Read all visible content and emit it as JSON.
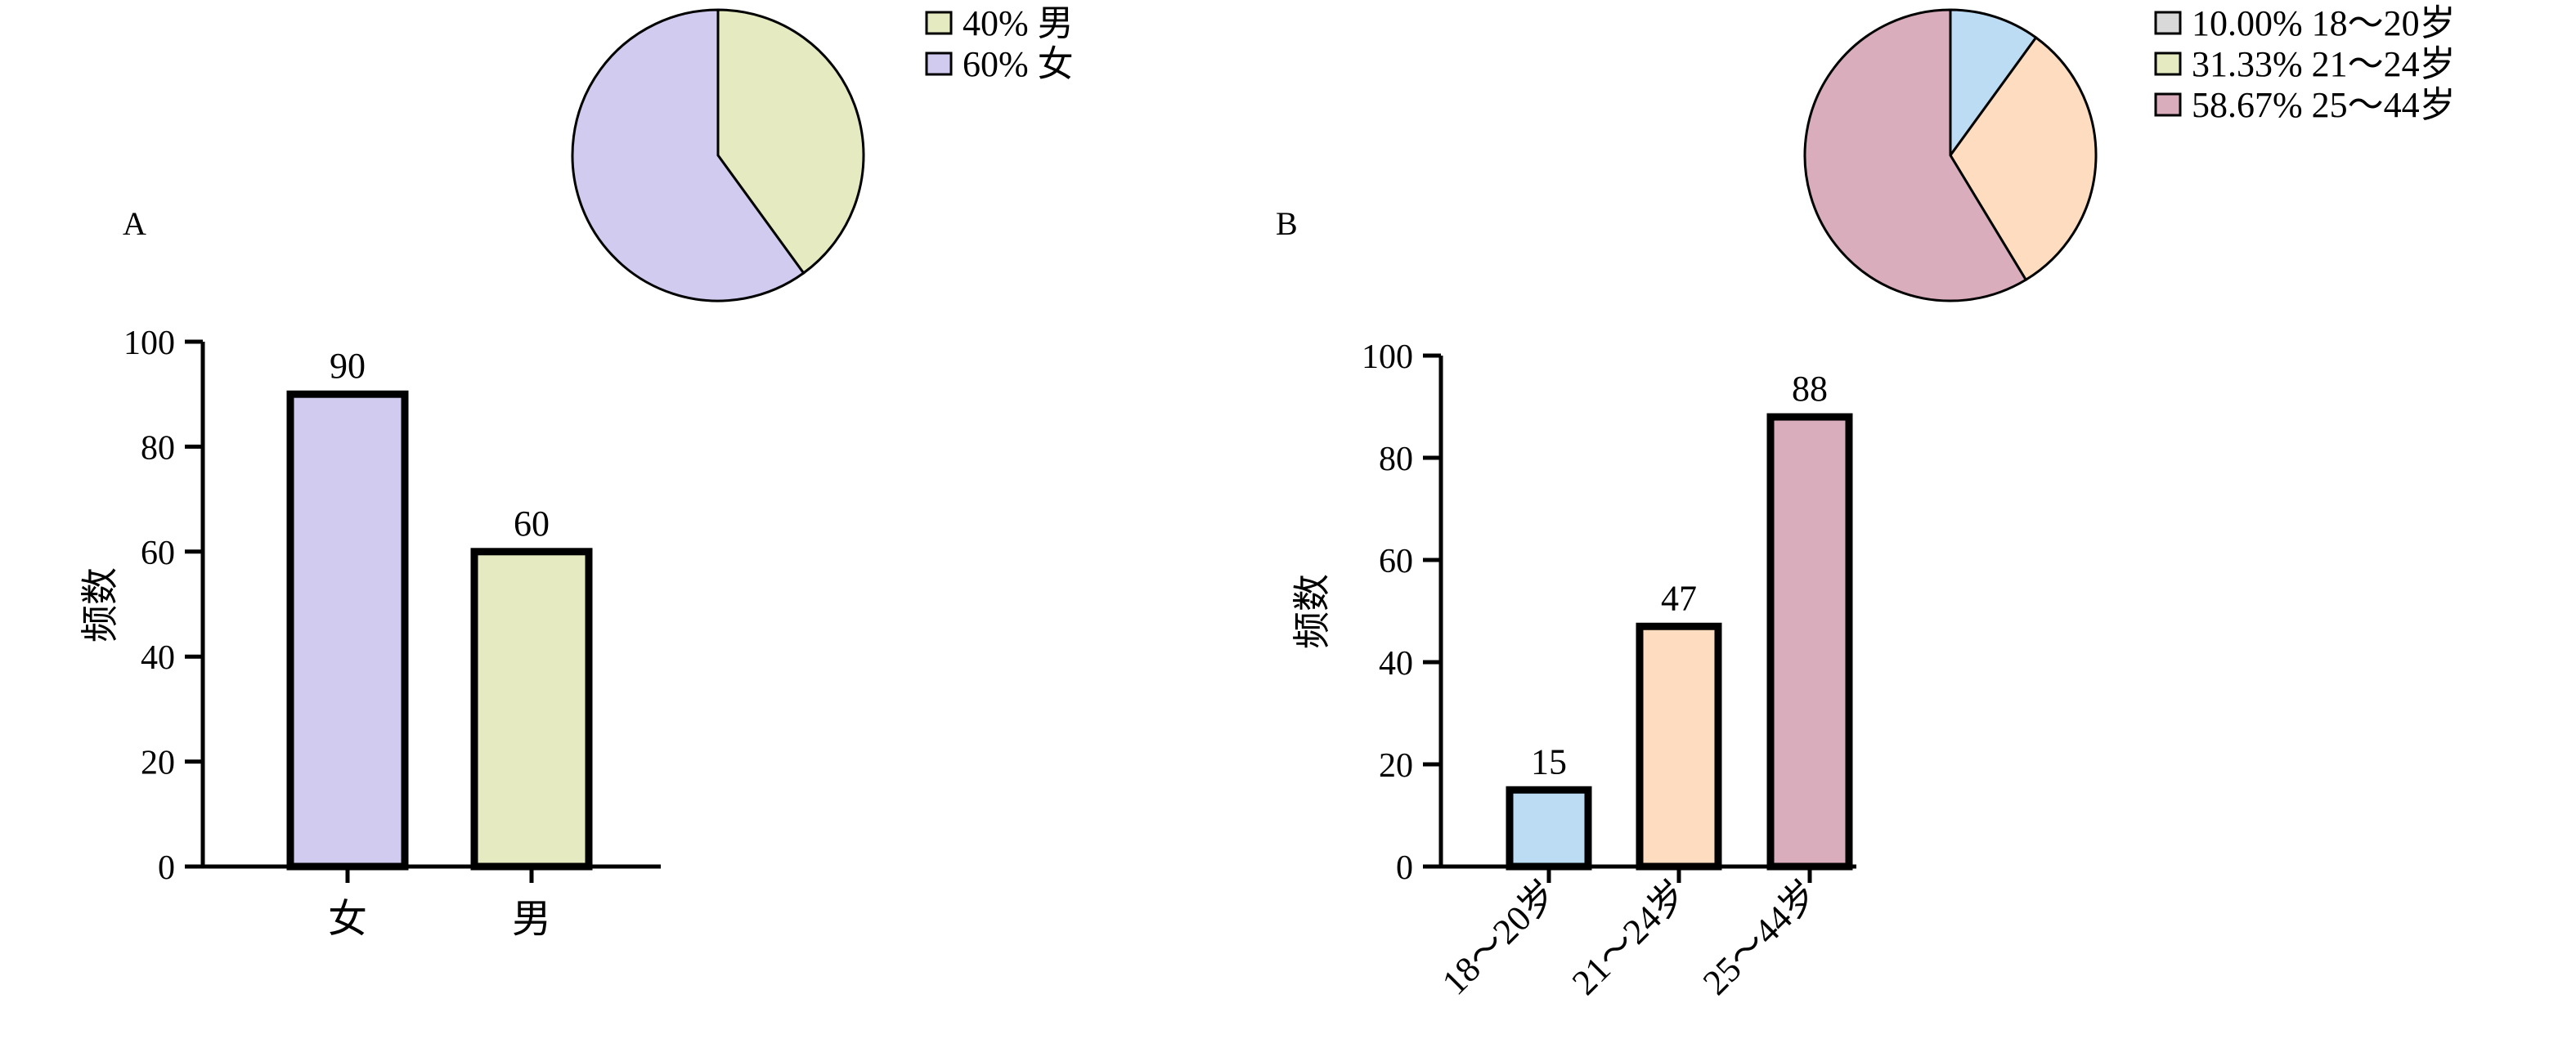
{
  "chart_data": [
    {
      "panel_label": "A",
      "type": "bar",
      "ylabel": "频数",
      "ylim": [
        0,
        100
      ],
      "yticks": [
        0,
        20,
        40,
        60,
        80,
        100
      ],
      "categories": [
        "女",
        "男"
      ],
      "values": [
        90,
        60
      ],
      "data_labels": [
        "90",
        "60"
      ],
      "colors": [
        "#d1cbf0",
        "#e5eac0"
      ],
      "pie": {
        "type": "pie",
        "slices": [
          {
            "name": "男",
            "percent": 40,
            "legend": "40% 男",
            "color": "#e5eac0"
          },
          {
            "name": "女",
            "percent": 60,
            "legend": "60% 女",
            "color": "#d1cbf0"
          }
        ]
      }
    },
    {
      "panel_label": "B",
      "type": "bar",
      "ylabel": "频数",
      "ylim": [
        0,
        100
      ],
      "yticks": [
        0,
        20,
        40,
        60,
        80,
        100
      ],
      "categories": [
        "18～20岁",
        "21～24岁",
        "25～44岁"
      ],
      "values": [
        15,
        47,
        88
      ],
      "data_labels": [
        "15",
        "47",
        "88"
      ],
      "colors": [
        "#bcdcf3",
        "#fddcc0",
        "#d9adbb"
      ],
      "pie": {
        "type": "pie",
        "slices": [
          {
            "name": "18～20岁",
            "percent": 10.0,
            "legend": "10.00% 18～20岁",
            "color": "#bcdcf3",
            "legend_color": "#d9d9d9"
          },
          {
            "name": "21～24岁",
            "percent": 31.33,
            "legend": "31.33% 21～24岁",
            "color": "#fddcc0",
            "legend_color": "#e5eac0"
          },
          {
            "name": "25～44岁",
            "percent": 58.67,
            "legend": "58.67% 25～44岁",
            "color": "#d9adbb",
            "legend_color": "#d9adbb"
          }
        ]
      }
    }
  ]
}
